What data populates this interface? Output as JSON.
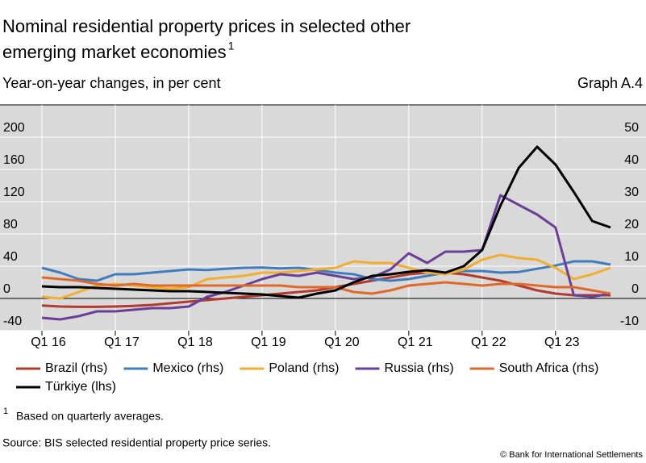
{
  "chart_data": {
    "type": "line",
    "title": [
      "Nominal residential property prices in selected other",
      "emerging market economies"
    ],
    "title_note": "1",
    "subtitle": "Year-on-year changes, in per cent",
    "graph_label": "Graph A.4",
    "footnote_marker": "1",
    "footnote": "Based on quarterly averages.",
    "source": "Source: BIS selected residential property price series.",
    "copyright": "© Bank for International Settlements",
    "categories": [
      "Q1 16",
      null,
      null,
      null,
      "Q1 17",
      null,
      null,
      null,
      "Q1 18",
      null,
      null,
      null,
      "Q1 19",
      null,
      null,
      null,
      "Q1 20",
      null,
      null,
      null,
      "Q1 21",
      null,
      null,
      null,
      "Q1 22",
      null,
      null,
      null,
      "Q1 23",
      null,
      null,
      null
    ],
    "ylim": [
      -40,
      240
    ],
    "yticks": [
      -40,
      0,
      40,
      80,
      120,
      160,
      200
    ],
    "y2lim": [
      -10,
      60
    ],
    "y2ticks": [
      -10,
      0,
      10,
      20,
      30,
      40,
      50
    ],
    "grid": true,
    "series": [
      {
        "name": "Brazil (rhs)",
        "color": "#b33a2e",
        "axis": "y2",
        "values": [
          -2.2,
          -2.5,
          -2.6,
          -2.6,
          -2.5,
          -2.3,
          -2,
          -1.5,
          -1,
          -0.5,
          0,
          0.5,
          1,
          1.5,
          2,
          2.5,
          3.5,
          4.5,
          5.5,
          6.5,
          7.5,
          8,
          8,
          7.5,
          6.5,
          5.5,
          4,
          2.5,
          1.5,
          1,
          1,
          1
        ]
      },
      {
        "name": "Mexico (rhs)",
        "color": "#3f7dbf",
        "axis": "y2",
        "values": [
          9.5,
          8,
          6,
          5.5,
          7.5,
          7.5,
          8,
          8.5,
          9,
          8.8,
          9.2,
          9.5,
          9.6,
          9.3,
          9.5,
          8.8,
          8,
          7.5,
          6,
          5.5,
          6,
          7,
          8,
          8.5,
          8.5,
          8,
          8.2,
          9.2,
          10.2,
          11.5,
          11.5,
          10.5
        ]
      },
      {
        "name": "Poland (rhs)",
        "color": "#f2ae2e",
        "axis": "y2",
        "values": [
          0.5,
          0,
          2,
          4,
          4.5,
          4,
          3.5,
          3,
          3.5,
          6,
          6.5,
          7,
          8,
          8,
          8.5,
          9,
          9.5,
          11.5,
          11,
          11,
          9.5,
          8,
          7.5,
          9,
          12,
          13.5,
          12.5,
          12,
          9.5,
          6,
          7.5,
          9.5
        ]
      },
      {
        "name": "Russia (rhs)",
        "color": "#6b3f96",
        "axis": "y2",
        "values": [
          -6,
          -6.5,
          -5.5,
          -4,
          -4,
          -3.5,
          -3,
          -3,
          -2.5,
          0.5,
          2,
          4,
          6,
          7.5,
          7,
          8,
          7,
          6,
          6.5,
          9,
          14,
          11,
          14.5,
          14.5,
          15,
          32,
          29,
          26,
          22,
          1,
          0.5,
          1.5
        ]
      },
      {
        "name": "South Africa (rhs)",
        "color": "#e0692a",
        "axis": "y2",
        "values": [
          6.5,
          6,
          5.5,
          4.5,
          4,
          4.5,
          4,
          4,
          4,
          4,
          4,
          4,
          4,
          4,
          3.5,
          3.5,
          3.5,
          2,
          1.5,
          2.5,
          4,
          4.5,
          5,
          4.5,
          4,
          4.5,
          4.5,
          4,
          3.5,
          3.5,
          2.5,
          1.5
        ]
      },
      {
        "name": "Türkiye (lhs)",
        "color": "#000000",
        "values": [
          15,
          14,
          14,
          13,
          12,
          11,
          10,
          9,
          9,
          8,
          7,
          6,
          5,
          3,
          1,
          6,
          10,
          20,
          28,
          30,
          33,
          35,
          32,
          40,
          60,
          115,
          162,
          188,
          166,
          132,
          96,
          88
        ]
      }
    ]
  }
}
